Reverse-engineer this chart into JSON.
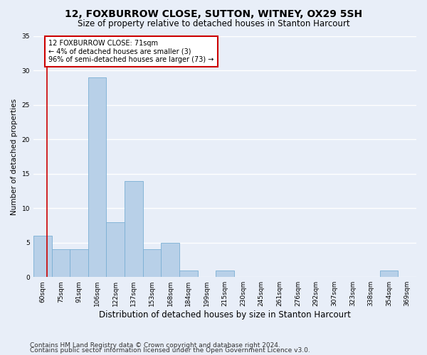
{
  "title": "12, FOXBURROW CLOSE, SUTTON, WITNEY, OX29 5SH",
  "subtitle": "Size of property relative to detached houses in Stanton Harcourt",
  "xlabel": "Distribution of detached houses by size in Stanton Harcourt",
  "ylabel": "Number of detached properties",
  "categories": [
    "60sqm",
    "75sqm",
    "91sqm",
    "106sqm",
    "122sqm",
    "137sqm",
    "153sqm",
    "168sqm",
    "184sqm",
    "199sqm",
    "215sqm",
    "230sqm",
    "245sqm",
    "261sqm",
    "276sqm",
    "292sqm",
    "307sqm",
    "323sqm",
    "338sqm",
    "354sqm",
    "369sqm"
  ],
  "values": [
    6,
    4,
    4,
    29,
    8,
    14,
    4,
    5,
    1,
    0,
    1,
    0,
    0,
    0,
    0,
    0,
    0,
    0,
    0,
    1,
    0
  ],
  "bar_color": "#b8d0e8",
  "bar_edge_color": "#7aafd4",
  "highlight_line_color": "#cc0000",
  "annotation_text": "12 FOXBURROW CLOSE: 71sqm\n← 4% of detached houses are smaller (3)\n96% of semi-detached houses are larger (73) →",
  "annotation_box_color": "#cc0000",
  "ylim": [
    0,
    35
  ],
  "yticks": [
    0,
    5,
    10,
    15,
    20,
    25,
    30,
    35
  ],
  "footer_line1": "Contains HM Land Registry data © Crown copyright and database right 2024.",
  "footer_line2": "Contains public sector information licensed under the Open Government Licence v3.0.",
  "bg_color": "#e8eef8",
  "plot_bg_color": "#e8eef8",
  "grid_color": "#ffffff",
  "title_fontsize": 10,
  "subtitle_fontsize": 8.5,
  "xlabel_fontsize": 8.5,
  "ylabel_fontsize": 7.5,
  "tick_fontsize": 6.5,
  "annotation_fontsize": 7,
  "footer_fontsize": 6.5
}
